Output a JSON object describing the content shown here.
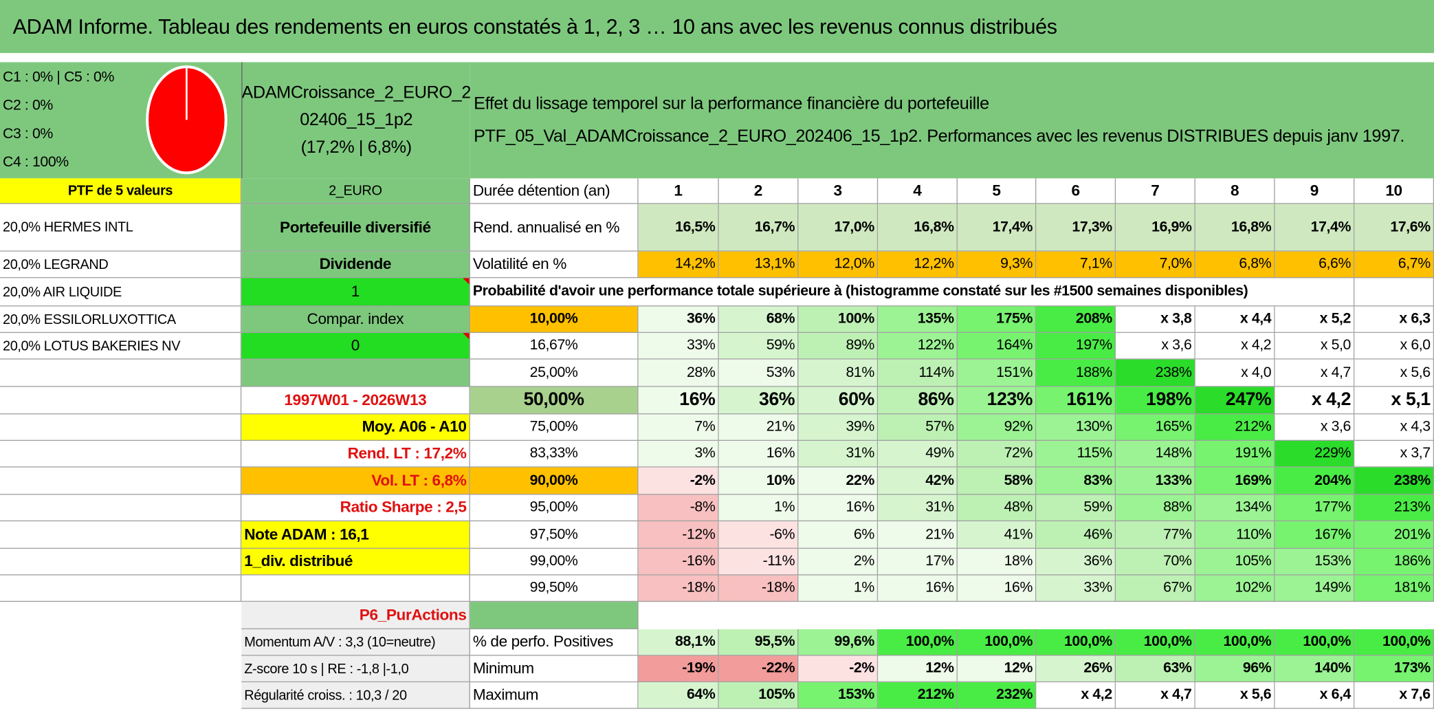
{
  "title": "ADAM Informe. Tableau des rendements en euros constatés à 1, 2, 3 … 10 ans avec les revenus connus distribués",
  "allocation": [
    "C1 : 0% | C5 : 0%",
    "C2 : 0%",
    "C3 : 0%",
    "C4 : 100%"
  ],
  "fund": {
    "name_lines": [
      "ADAMCroissance_2_EURO_2",
      "02406_15_1p2"
    ],
    "summary": "(17,2% | 6,8%)"
  },
  "description": [
    "Effet du lissage temporel sur la performance financière du portefeuille",
    "PTF_05_Val_ADAMCroissance_2_EURO_202406_15_1p2. Performances avec les revenus DISTRIBUES depuis janv 1997."
  ],
  "holdings_header": "PTF de 5 valeurs",
  "holdings": [
    "20,0% HERMES INTL",
    "20,0% LEGRAND",
    "20,0% AIR LIQUIDE",
    "20,0% ESSILORLUXOTTICA",
    "20,0% LOTUS BAKERIES NV"
  ],
  "tags": [
    "2_EURO",
    "Portefeuille diversifié",
    "Dividende",
    "1",
    "Compar. index",
    "0"
  ],
  "period": "1997W01 - 2026W13",
  "stats": [
    "Moy. A06 - A10",
    "Rend. LT : 17,2%",
    "Vol. LT : 6,8%",
    "Ratio Sharpe : 2,5",
    "Note ADAM : 16,1",
    "1_div. distribué"
  ],
  "style_label": "P6_PurActions",
  "indicators": [
    "Momentum A/V : 3,3 (10=neutre)",
    "Z-score 10 s | RE : -1,8 |-1,0",
    "Régularité croiss. : 10,3 / 20"
  ],
  "table": {
    "header_label": "Durée détention (an)",
    "years": [
      1,
      2,
      3,
      4,
      5,
      6,
      7,
      8,
      9,
      10
    ],
    "rows": [
      {
        "label": "Rend. annualisé en %",
        "cells": [
          "16,5%",
          "16,7%",
          "17,0%",
          "16,8%",
          "17,4%",
          "17,3%",
          "16,9%",
          "16,8%",
          "17,4%",
          "17,6%"
        ]
      },
      {
        "label": "Volatilité en %",
        "cells": [
          "14,2%",
          "13,1%",
          "12,0%",
          "12,2%",
          "9,3%",
          "7,1%",
          "7,0%",
          "6,8%",
          "6,6%",
          "6,7%"
        ]
      }
    ],
    "probability_caption": "Probabilité d'avoir une performance totale supérieure à (histogramme constaté sur les #1500 semaines disponibles)",
    "probability_rows": [
      {
        "threshold": "10,00%",
        "cells": [
          "36%",
          "68%",
          "100%",
          "135%",
          "175%",
          "208%",
          "x 3,8",
          "x 4,4",
          "x 5,2",
          "x 6,3"
        ]
      },
      {
        "threshold": "16,67%",
        "cells": [
          "33%",
          "59%",
          "89%",
          "122%",
          "164%",
          "197%",
          "x 3,6",
          "x 4,2",
          "x 5,0",
          "x 6,0"
        ]
      },
      {
        "threshold": "25,00%",
        "cells": [
          "28%",
          "53%",
          "81%",
          "114%",
          "151%",
          "188%",
          "238%",
          "x 4,0",
          "x 4,7",
          "x 5,6"
        ]
      },
      {
        "threshold": "50,00%",
        "cells": [
          "16%",
          "36%",
          "60%",
          "86%",
          "123%",
          "161%",
          "198%",
          "247%",
          "x 4,2",
          "x 5,1"
        ]
      },
      {
        "threshold": "75,00%",
        "cells": [
          "7%",
          "21%",
          "39%",
          "57%",
          "92%",
          "130%",
          "165%",
          "212%",
          "x 3,6",
          "x 4,3"
        ]
      },
      {
        "threshold": "83,33%",
        "cells": [
          "3%",
          "16%",
          "31%",
          "49%",
          "72%",
          "115%",
          "148%",
          "191%",
          "229%",
          "x 3,7"
        ]
      },
      {
        "threshold": "90,00%",
        "cells": [
          "-2%",
          "10%",
          "22%",
          "42%",
          "58%",
          "83%",
          "133%",
          "169%",
          "204%",
          "238%"
        ]
      },
      {
        "threshold": "95,00%",
        "cells": [
          "-8%",
          "1%",
          "16%",
          "31%",
          "48%",
          "59%",
          "88%",
          "134%",
          "177%",
          "213%"
        ]
      },
      {
        "threshold": "97,50%",
        "cells": [
          "-12%",
          "-6%",
          "6%",
          "21%",
          "41%",
          "46%",
          "77%",
          "110%",
          "167%",
          "201%"
        ]
      },
      {
        "threshold": "99,00%",
        "cells": [
          "-16%",
          "-11%",
          "2%",
          "17%",
          "18%",
          "36%",
          "70%",
          "105%",
          "153%",
          "186%"
        ]
      },
      {
        "threshold": "99,50%",
        "cells": [
          "-18%",
          "-18%",
          "1%",
          "16%",
          "16%",
          "33%",
          "67%",
          "102%",
          "149%",
          "181%"
        ]
      }
    ],
    "summary_rows": [
      {
        "label": "% de perfo. Positives",
        "cells": [
          "88,1%",
          "95,5%",
          "99,6%",
          "100,0%",
          "100,0%",
          "100,0%",
          "100,0%",
          "100,0%",
          "100,0%",
          "100,0%"
        ]
      },
      {
        "label": "Minimum",
        "cells": [
          "-19%",
          "-22%",
          "-2%",
          "12%",
          "12%",
          "26%",
          "63%",
          "96%",
          "140%",
          "173%"
        ]
      },
      {
        "label": "Maximum",
        "cells": [
          "64%",
          "105%",
          "153%",
          "212%",
          "232%",
          "x 4,2",
          "x 4,7",
          "x 5,6",
          "x 6,4",
          "x 7,6"
        ]
      }
    ]
  }
}
